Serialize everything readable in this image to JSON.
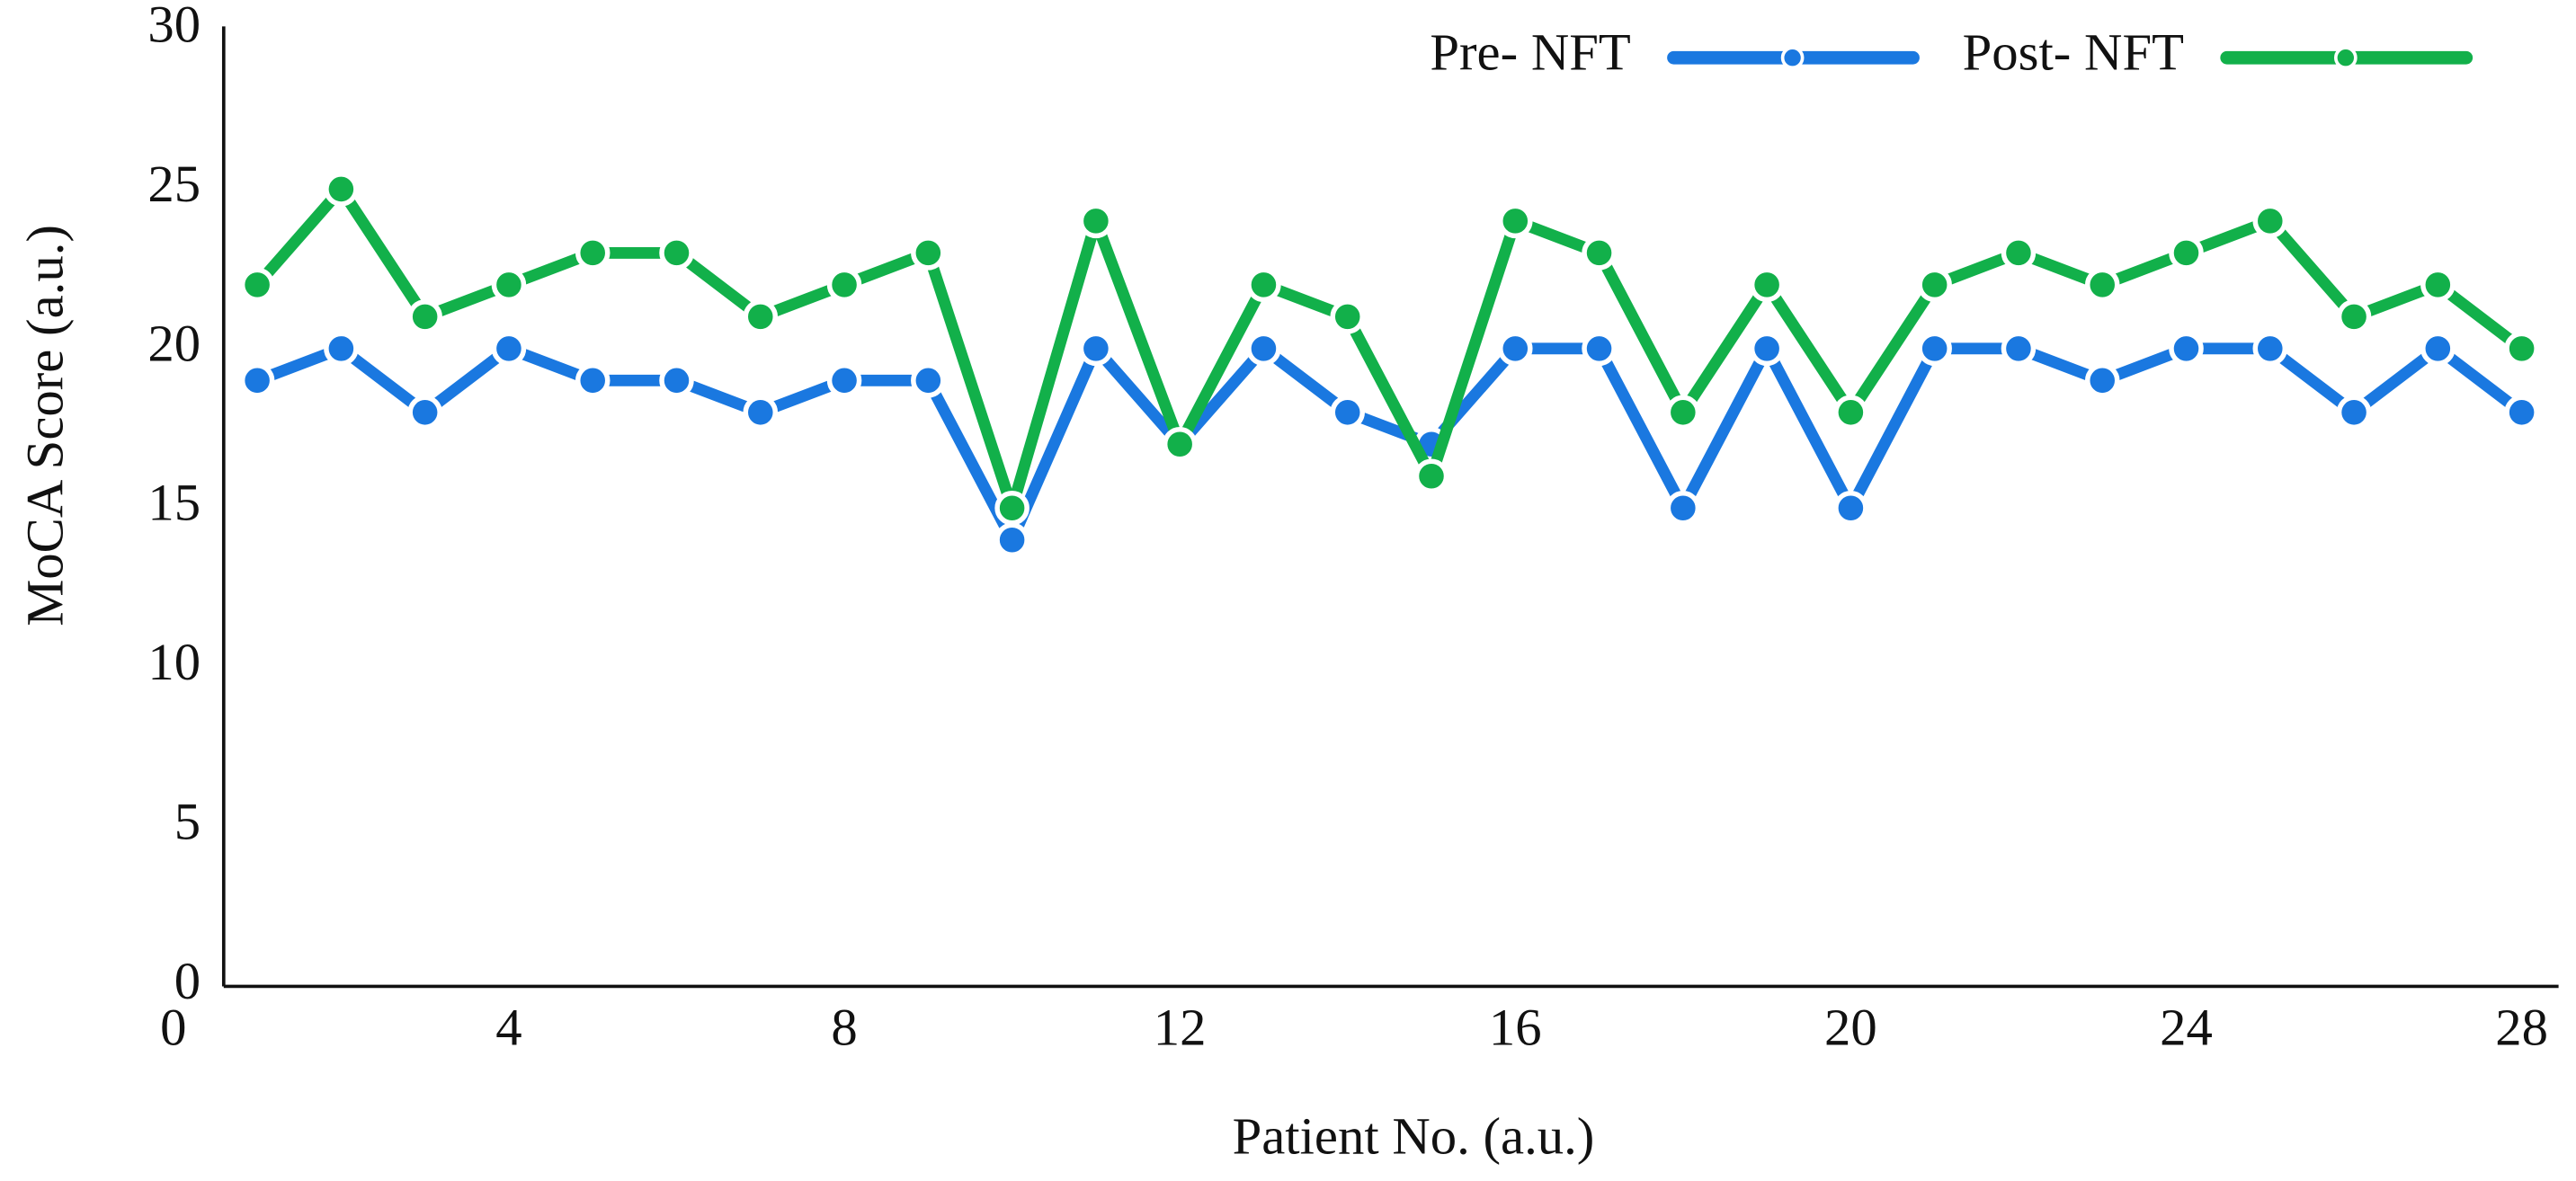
{
  "chart_data": {
    "type": "line",
    "x_label": "Patient No. (a.u.)",
    "y_label": "MoCA Score (a.u.)",
    "x": [
      1,
      2,
      3,
      4,
      5,
      6,
      7,
      8,
      9,
      10,
      11,
      12,
      13,
      14,
      15,
      16,
      17,
      18,
      19,
      20,
      21,
      22,
      23,
      24,
      25,
      26,
      27,
      28
    ],
    "series": [
      {
        "name": "Pre- NFT",
        "color": "#1a78e0",
        "values": [
          19,
          20,
          18,
          20,
          19,
          19,
          18,
          19,
          19,
          14,
          20,
          17,
          20,
          18,
          17,
          20,
          20,
          15,
          20,
          15,
          20,
          20,
          19,
          20,
          20,
          18,
          20,
          18
        ]
      },
      {
        "name": "Post- NFT",
        "color": "#12b04a",
        "values": [
          22,
          25,
          21,
          22,
          23,
          23,
          21,
          22,
          23,
          15,
          24,
          17,
          22,
          21,
          16,
          24,
          23,
          18,
          22,
          18,
          22,
          23,
          22,
          23,
          24,
          21,
          22,
          20
        ]
      }
    ],
    "xlim": [
      0.6,
      28.4
    ],
    "xticks": [
      0,
      4,
      8,
      12,
      16,
      20,
      24,
      28
    ],
    "ylim": [
      0,
      30
    ],
    "yticks": [
      0,
      5,
      10,
      15,
      20,
      25,
      30
    ],
    "grid": false,
    "legend": "top-right"
  }
}
